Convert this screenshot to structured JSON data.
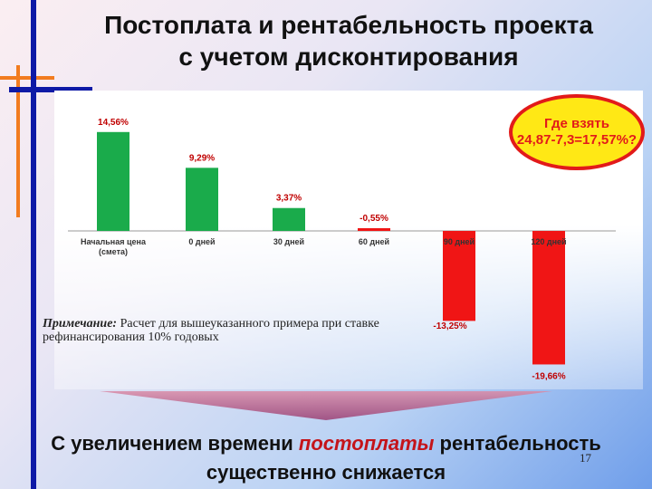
{
  "title": {
    "line1": "Постоплата и рентабельность проекта",
    "line2": "с учетом дисконтирования"
  },
  "callout": {
    "line1": "Где взять",
    "line2": "24,87-7,3=17,57%?"
  },
  "note": {
    "label": "Примечание:",
    "text": " Расчет для вышеуказанного примера при ставке рефинансирования 10% годовых"
  },
  "conclusion": {
    "before": "С увеличением времени ",
    "highlight": "постоплаты",
    "after": " рентабельность",
    "line2": "существенно снижается"
  },
  "page_number": "17",
  "colors": {
    "positive": "#1aab4b",
    "negative": "#f01515",
    "label": "#c00000",
    "callout_fill": "#ffe815",
    "callout_border": "#e21a1a"
  },
  "chart_data": {
    "type": "bar",
    "categories": [
      "Начальная цена (смета)",
      "0 дней",
      "30 дней",
      "60 дней",
      "90 дней",
      "120 дней"
    ],
    "values": [
      14.56,
      9.29,
      3.37,
      -0.55,
      -13.25,
      -19.66
    ],
    "data_labels": [
      "14,56%",
      "9,29%",
      "3,37%",
      "-0,55%",
      "-13,25%",
      "-19,66%"
    ],
    "title": "",
    "xlabel": "",
    "ylabel": "",
    "ylim": [
      -20,
      15
    ],
    "grid": false,
    "legend": "none"
  }
}
